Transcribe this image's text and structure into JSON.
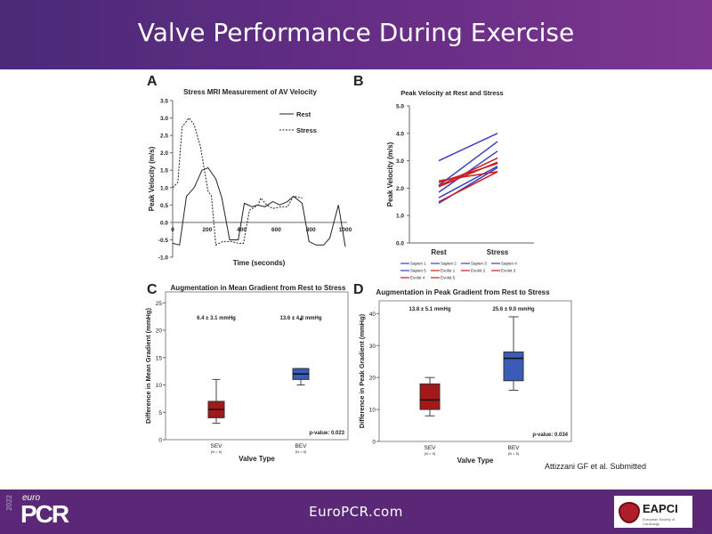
{
  "slide": {
    "title": "Valve Performance During Exercise",
    "citation": "Attizzani GF et al. Submitted",
    "footer": {
      "site": "EuroPCR.com",
      "logo_euro": "euro",
      "logo_pcr": "PCR",
      "logo_year": "2022",
      "partner_name": "EAPCI",
      "partner_sub": "European Society of Cardiology"
    },
    "colors": {
      "header": "#5a2c7e",
      "footer": "#5b2877",
      "sapien": "#3a3fc4",
      "evolut": "#c81e1e",
      "box_sev": "#a31818",
      "box_bev": "#3a5cb8"
    }
  },
  "chart_data": [
    {
      "panel": "A",
      "type": "line",
      "title": "Stress MRI Measurement of AV Velocity",
      "xlabel": "Time (seconds)",
      "ylabel": "Peak Velocity  (m/s)",
      "xlim": [
        0,
        1000
      ],
      "ylim": [
        -1.0,
        3.5
      ],
      "xticks": [
        "0",
        "200",
        "400",
        "600",
        "800",
        "1000"
      ],
      "yticks": [
        "3.5",
        "3.0",
        "2.5",
        "2.0",
        "1.5",
        "1.0",
        "0.5",
        "0.0",
        "-0.5",
        "-1.0"
      ],
      "legend_position": "top-right",
      "series": [
        {
          "name": "Rest",
          "style": "solid",
          "x": [
            0,
            40,
            80,
            125,
            170,
            205,
            250,
            285,
            330,
            380,
            415,
            460,
            490,
            535,
            580,
            620,
            665,
            700,
            750,
            790,
            830,
            875,
            910,
            960,
            1000
          ],
          "y": [
            -0.6,
            -0.65,
            0.75,
            1.0,
            1.5,
            1.57,
            1.25,
            0.7,
            -0.5,
            -0.5,
            0.55,
            0.45,
            0.5,
            0.45,
            0.6,
            0.5,
            0.6,
            0.75,
            0.55,
            -0.55,
            -0.65,
            -0.65,
            -0.45,
            0.5,
            -0.7
          ]
        },
        {
          "name": "Stress",
          "style": "dashed",
          "x": [
            0,
            30,
            55,
            95,
            125,
            160,
            205,
            225,
            250,
            290,
            340,
            380,
            410,
            445,
            495,
            510,
            545,
            580,
            630,
            665,
            700,
            750
          ],
          "y": [
            1.0,
            1.15,
            2.75,
            3.0,
            2.8,
            2.2,
            0.9,
            0.75,
            -0.65,
            -0.55,
            -0.55,
            -0.6,
            -0.6,
            0.35,
            0.5,
            0.7,
            0.5,
            0.4,
            0.45,
            0.45,
            0.75,
            0.7
          ]
        }
      ]
    },
    {
      "panel": "B",
      "type": "line",
      "title": "Peak Velocity at Rest and Stress",
      "ylabel": "Peak Velocity (m/s)",
      "categories": [
        "Rest",
        "Stress"
      ],
      "ylim": [
        0,
        5.0
      ],
      "yticks": [
        "5.0",
        "4.0",
        "3.0",
        "2.0",
        "1.0",
        "0.0"
      ],
      "legend_position": "bottom",
      "series": [
        {
          "name": "Sapien 1",
          "color": "#3a3fc4",
          "values": [
            3.0,
            4.0
          ]
        },
        {
          "name": "Sapien 2",
          "color": "#3a3fc4",
          "values": [
            2.1,
            3.7
          ]
        },
        {
          "name": "Sapien 3",
          "color": "#3a3fc4",
          "values": [
            1.85,
            3.35
          ]
        },
        {
          "name": "Sapien 4",
          "color": "#3a3fc4",
          "values": [
            1.65,
            2.8
          ]
        },
        {
          "name": "Sapien 5",
          "color": "#3a3fc4",
          "values": [
            1.45,
            2.75
          ]
        },
        {
          "name": "Evolut 1",
          "color": "#c81e1e",
          "values": [
            2.27,
            2.6
          ]
        },
        {
          "name": "Evolut 2",
          "color": "#c81e1e",
          "values": [
            2.2,
            2.9
          ]
        },
        {
          "name": "Evolut 3",
          "color": "#c81e1e",
          "values": [
            2.08,
            3.1
          ]
        },
        {
          "name": "Evolut 4",
          "color": "#c81e1e",
          "values": [
            2.05,
            2.95
          ]
        },
        {
          "name": "Evolut 5",
          "color": "#c81e1e",
          "values": [
            1.5,
            2.6
          ]
        }
      ]
    },
    {
      "panel": "C",
      "type": "box",
      "title": "Augmentation in Mean Gradient from Rest to Stress",
      "xlabel": "Valve Type",
      "ylabel": "Difference in Mean Gradient (mmHg)",
      "ylim": [
        0,
        27
      ],
      "yticks": [
        "0",
        "5",
        "10",
        "15",
        "20",
        "25"
      ],
      "p_value": "p-value: 0.023",
      "groups": [
        {
          "name": "SEV",
          "n": "(N = 5)",
          "summary": "6.4 ± 3.1 mmHg",
          "color": "#a31818",
          "min": 3,
          "q1": 4,
          "median": 5.5,
          "q3": 7,
          "max": 11,
          "outliers": []
        },
        {
          "name": "BEV",
          "n": "(N = 5)",
          "summary": "13.6 ± 4.8 mmHg",
          "color": "#3a5cb8",
          "min": 10,
          "q1": 11,
          "median": 12,
          "q3": 13,
          "max": 13,
          "outliers": [
            22
          ]
        }
      ]
    },
    {
      "panel": "D",
      "type": "box",
      "title": "Augmentation in Peak Gradient from Rest to Stress",
      "xlabel": "Valve Type",
      "ylabel": "Difference in Peak Gradient (mmHg)",
      "ylim": [
        0,
        44
      ],
      "yticks": [
        "0",
        "10",
        "20",
        "30",
        "40"
      ],
      "p_value": "p-value: 0.034",
      "groups": [
        {
          "name": "SEV",
          "n": "(N = 5)",
          "summary": "13.8 ± 5.1 mmHg",
          "color": "#a31818",
          "min": 8,
          "q1": 10,
          "median": 13,
          "q3": 18,
          "max": 20,
          "outliers": []
        },
        {
          "name": "BEV",
          "n": "(N = 5)",
          "summary": "25.6 ± 9.0 mmHg",
          "color": "#3a5cb8",
          "min": 16,
          "q1": 19,
          "median": 26,
          "q3": 28,
          "max": 39,
          "outliers": []
        }
      ]
    }
  ]
}
